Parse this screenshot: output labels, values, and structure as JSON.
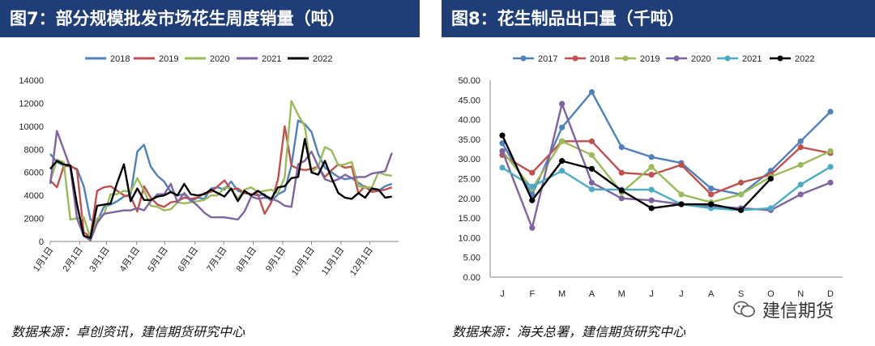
{
  "left_panel": {
    "title": "图7：部分规模批发市场花生周度销量（吨）",
    "source": "数据来源：卓创资讯，建信期货研究中心"
  },
  "right_panel": {
    "title": "图8：花生制品出口量（千吨）",
    "source": "数据来源：海关总署，建信期货研究中心"
  },
  "watermark": {
    "text": "建信期货",
    "icon": "wechat-icon"
  },
  "chart_data": [
    {
      "type": "line",
      "title": "图7：部分规模批发市场花生周度销量（吨）",
      "ylabel": "吨",
      "ylim": [
        0,
        14000
      ],
      "yticks": [
        0,
        2000,
        4000,
        6000,
        8000,
        10000,
        12000,
        14000
      ],
      "xlim": [
        0,
        52
      ],
      "xticks": [
        {
          "label": "1月1日",
          "pos": 0
        },
        {
          "label": "2月1日",
          "pos": 4.4
        },
        {
          "label": "3月1日",
          "pos": 8.4
        },
        {
          "label": "4月1日",
          "pos": 12.9
        },
        {
          "label": "5月1日",
          "pos": 17.1
        },
        {
          "label": "6月1日",
          "pos": 21.6
        },
        {
          "label": "7月1日",
          "pos": 25.9
        },
        {
          "label": "8月1日",
          "pos": 30.3
        },
        {
          "label": "9月1日",
          "pos": 34.7
        },
        {
          "label": "10月1日",
          "pos": 39.0
        },
        {
          "label": "11月1日",
          "pos": 43.4
        },
        {
          "label": "12月1日",
          "pos": 47.7
        }
      ],
      "series": [
        {
          "name": "2018",
          "color": "#4f81bd",
          "values": [
            7600,
            6900,
            6600,
            6500,
            6300,
            4800,
            1900,
            1700,
            3000,
            3200,
            3500,
            3900,
            4100,
            7800,
            8400,
            6500,
            5700,
            5200,
            4300,
            4000,
            4100,
            3500,
            3800,
            3700,
            4600,
            4700,
            4500,
            5200,
            4400,
            4200,
            4100,
            4000,
            4100,
            3500,
            4100,
            4400,
            6600,
            10500,
            10200,
            9500,
            7600,
            6400,
            6000,
            5600,
            5400,
            5500,
            5100,
            4700,
            4400,
            4400,
            4800,
            5000
          ]
        },
        {
          "name": "2019",
          "color": "#c0504d",
          "values": [
            5300,
            4700,
            6500,
            6600,
            6200,
            800,
            400,
            4400,
            4700,
            4800,
            4400,
            4000,
            3900,
            2600,
            4800,
            3800,
            3200,
            3000,
            3400,
            3500,
            3800,
            3700,
            3800,
            4200,
            4300,
            4800,
            5300,
            4500,
            4600,
            4200,
            4100,
            4100,
            2400,
            3400,
            5400,
            10000,
            6600,
            6300,
            6200,
            6300,
            6500,
            5600,
            6200,
            6700,
            6400,
            6500,
            4200,
            4800,
            4300,
            4400,
            4500,
            4700
          ]
        },
        {
          "name": "2020",
          "color": "#9bbb59",
          "values": [
            5200,
            7100,
            6900,
            1900,
            2000,
            2100,
            300,
            2000,
            2300,
            4100,
            4100,
            4400,
            4300,
            5500,
            4400,
            3100,
            3000,
            2700,
            2800,
            3400,
            3300,
            3400,
            3500,
            3600,
            4000,
            4000,
            4700,
            4600,
            3700,
            4500,
            4700,
            4300,
            4400,
            4500,
            4200,
            5600,
            12200,
            11000,
            10000,
            6000,
            6500,
            8200,
            7900,
            6600,
            6700,
            6900,
            4800,
            4700,
            4700,
            6000,
            5800,
            5700
          ]
        },
        {
          "name": "2021",
          "color": "#8064a2",
          "values": [
            5000,
            9600,
            8000,
            6400,
            2000,
            500,
            100,
            1600,
            2400,
            2500,
            2600,
            2700,
            2700,
            2900,
            2700,
            3500,
            4100,
            4100,
            5000,
            3400,
            4200,
            3600,
            3100,
            2500,
            2100,
            2100,
            2100,
            2000,
            1900,
            2600,
            3900,
            3700,
            3800,
            3700,
            3500,
            3100,
            3000,
            6700,
            7000,
            7800,
            6500,
            5400,
            5200,
            5400,
            5800,
            5500,
            5600,
            5600,
            5900,
            6000,
            6100,
            7700
          ]
        },
        {
          "name": "2022",
          "color": "#000000",
          "values": [
            6300,
            7000,
            6700,
            6600,
            3200,
            500,
            300,
            3100,
            3200,
            3300,
            5100,
            6700,
            3500,
            4600,
            3600,
            3600,
            3900,
            4000,
            4300,
            4000,
            5000,
            4100,
            4000,
            4100,
            4500,
            4200,
            3900,
            4600,
            3500,
            4400,
            4000,
            4400,
            4000,
            3700,
            4700,
            4800,
            5500,
            5600,
            8900,
            6000,
            5800,
            7000,
            5500,
            4200,
            3800,
            3700,
            4200,
            3800,
            4600,
            4500,
            3800,
            3900
          ]
        }
      ]
    },
    {
      "type": "line",
      "title": "图8：花生制品出口量（千吨）",
      "ylabel": "千吨",
      "ylim": [
        0,
        50
      ],
      "yticks": [
        0.0,
        5.0,
        10.0,
        15.0,
        20.0,
        25.0,
        30.0,
        35.0,
        40.0,
        45.0,
        50.0
      ],
      "categories": [
        "J",
        "F",
        "M",
        "A",
        "M",
        "J",
        "J",
        "A",
        "S",
        "O",
        "N",
        "D"
      ],
      "series": [
        {
          "name": "2017",
          "color": "#4f81bd",
          "values": [
            34.0,
            21.0,
            38.0,
            47.0,
            33.0,
            30.5,
            29.0,
            22.5,
            21.0,
            27.0,
            34.5,
            42.0
          ]
        },
        {
          "name": "2018",
          "color": "#c0504d",
          "values": [
            31.0,
            26.5,
            34.5,
            34.5,
            26.5,
            26.0,
            28.5,
            21.0,
            24.0,
            26.0,
            33.0,
            31.5
          ]
        },
        {
          "name": "2019",
          "color": "#9bbb59",
          "values": [
            32.0,
            22.5,
            34.5,
            31.0,
            21.5,
            28.0,
            21.0,
            19.0,
            21.0,
            25.5,
            28.5,
            32.0
          ]
        },
        {
          "name": "2020",
          "color": "#8064a2",
          "values": [
            32.0,
            12.5,
            44.0,
            24.0,
            20.0,
            19.5,
            18.5,
            18.0,
            17.5,
            17.0,
            21.0,
            24.0
          ]
        },
        {
          "name": "2021",
          "color": "#4bacc6",
          "values": [
            27.8,
            23.0,
            27.0,
            22.3,
            22.2,
            22.2,
            18.5,
            17.5,
            17.0,
            17.5,
            23.5,
            28.0
          ]
        },
        {
          "name": "2022",
          "color": "#000000",
          "values": [
            36.0,
            19.5,
            29.5,
            27.5,
            22.0,
            17.5,
            18.5,
            18.5,
            17.0,
            25.0,
            null,
            null
          ]
        }
      ]
    }
  ]
}
